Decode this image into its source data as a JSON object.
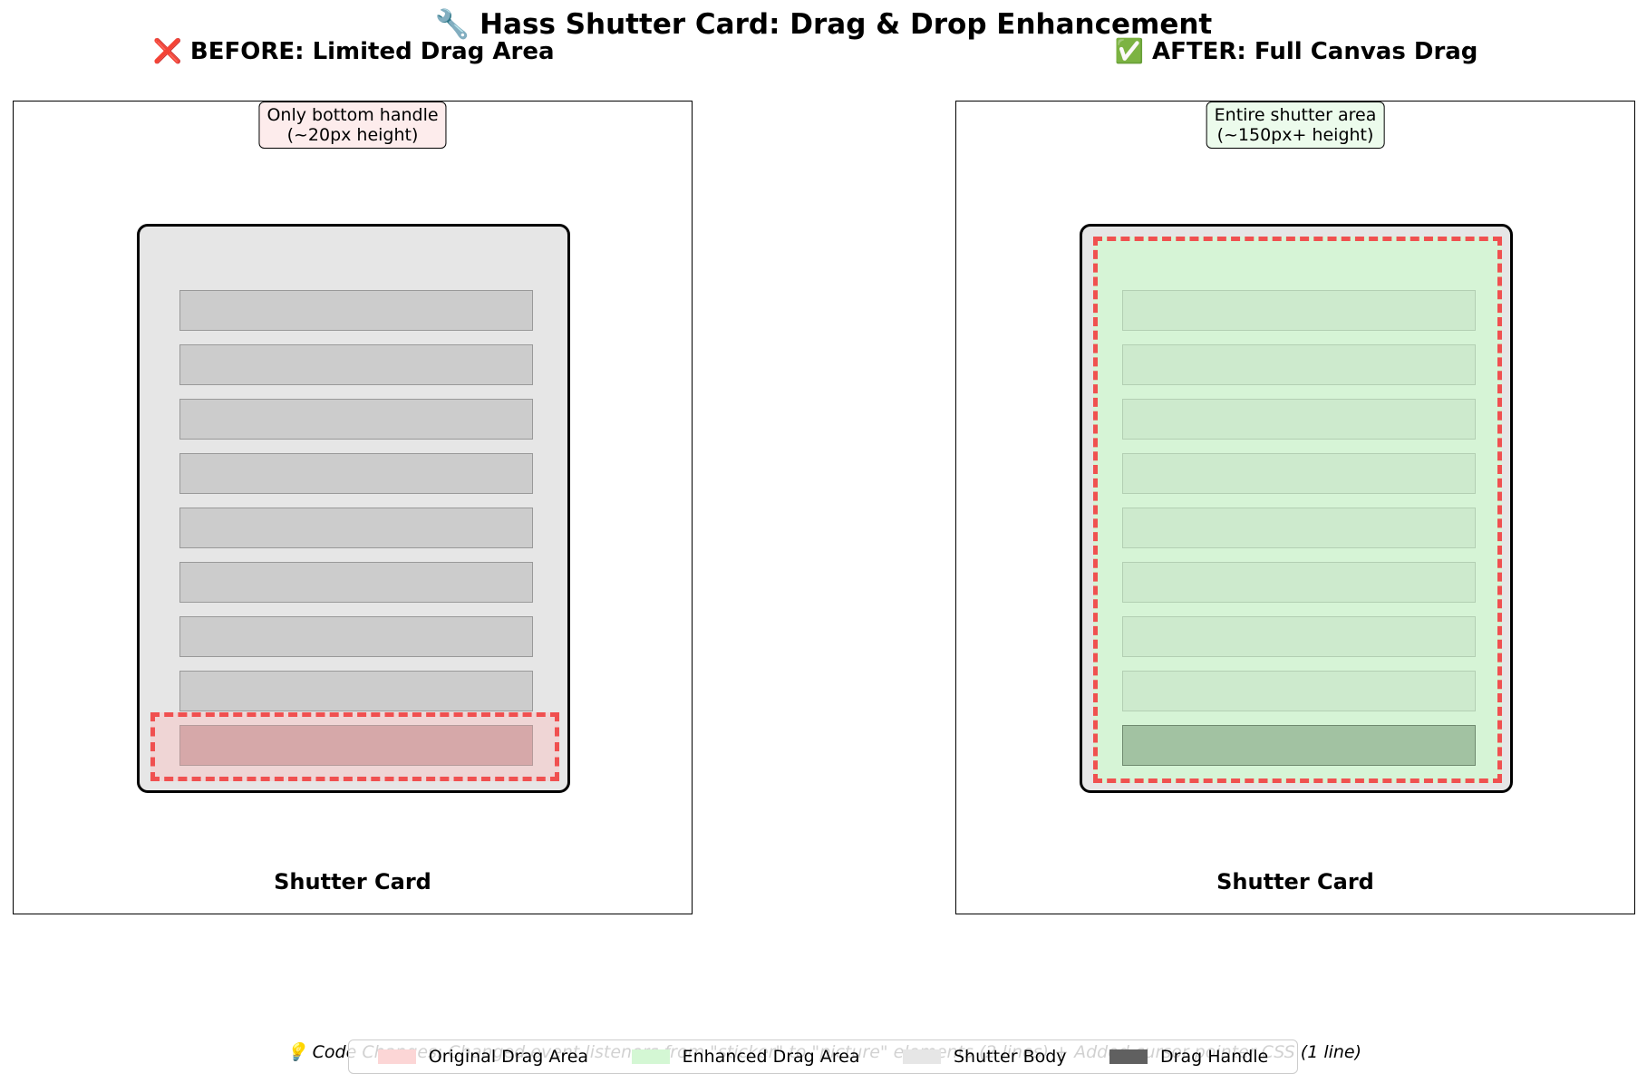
{
  "title": "🔧 Hass Shutter Card: Drag & Drop Enhancement",
  "panels": {
    "before": {
      "title": "❌ BEFORE: Limited Drag Area",
      "note_line1": "Only bottom handle",
      "note_line2": "(~20px height)",
      "card_label": "Shutter Card"
    },
    "after": {
      "title": "✅ AFTER: Full Canvas Drag",
      "note_line1": "Entire shutter area",
      "note_line2": "(~150px+ height)",
      "card_label": "Shutter Card"
    }
  },
  "footer": {
    "note": "💡 Code Changes: Changed event listeners from \"sticker\" to \"picture\" elements (2 lines) + Added cursor pointer CSS (1 line)"
  },
  "legend": {
    "items": [
      {
        "label": "Original Drag Area",
        "color": "#fcd6d6"
      },
      {
        "label": "Enhanced Drag Area",
        "color": "#d4f7d4"
      },
      {
        "label": "Shutter Body",
        "color": "#e6e6e6"
      },
      {
        "label": "Drag Handle",
        "color": "#606060"
      }
    ]
  },
  "colors": {
    "drag_outline": "#f05050",
    "card_body": "#e6e6e6",
    "slat": "#cccccc"
  }
}
